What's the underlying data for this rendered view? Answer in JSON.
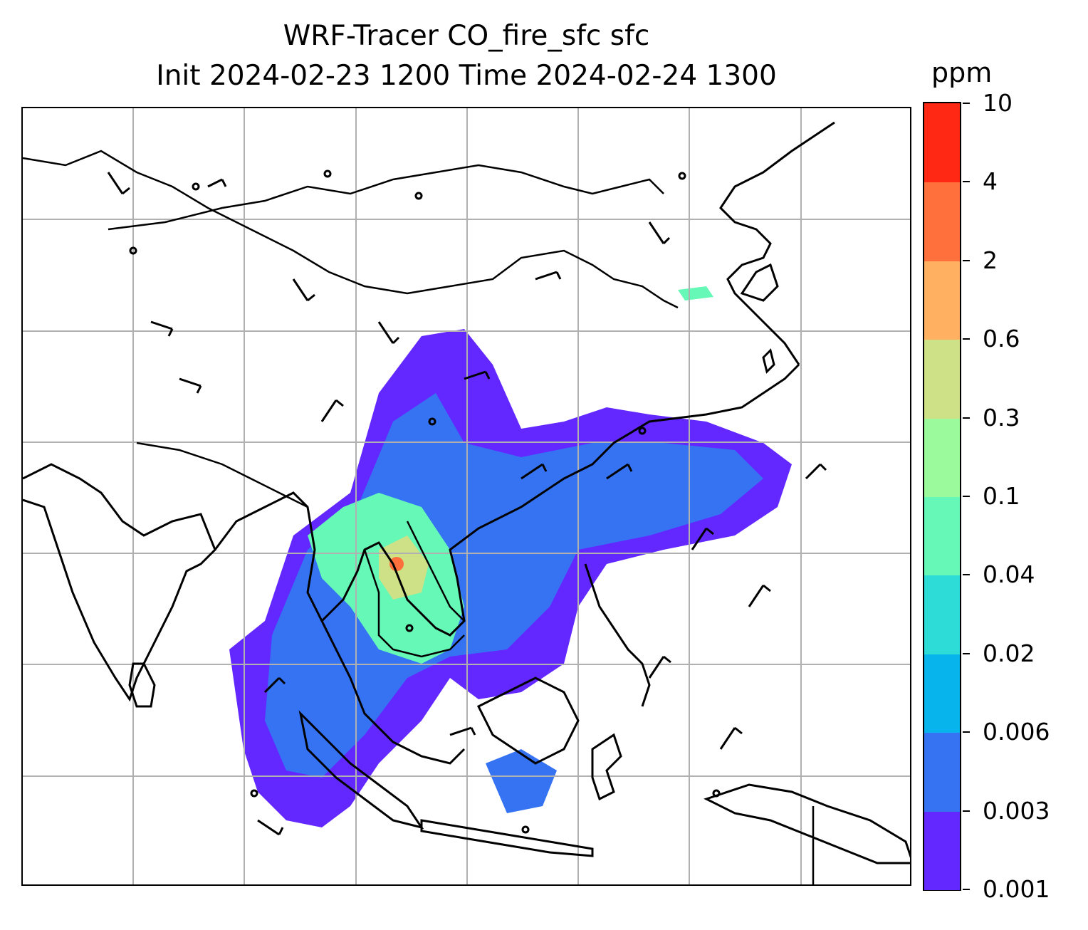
{
  "map": {
    "title_line1": "WRF-Tracer CO_fire_sfc sfc",
    "title_line2": "Init 2024-02-23 1200 Time 2024-02-24 1300",
    "variable": "CO_fire_sfc",
    "level": "sfc",
    "init_time": "2024-02-23 1200",
    "valid_time": "2024-02-24 1300",
    "overlays": [
      "coastlines",
      "country-borders",
      "gridlines",
      "wind-barbs",
      "calm-wind-circles"
    ],
    "colors": {
      "coastline": "#000000",
      "gridline": "#b0b0b0",
      "barb": "#000000"
    }
  },
  "colorbar": {
    "unit": "ppm",
    "levels": [
      "0.001",
      "0.003",
      "0.006",
      "0.02",
      "0.04",
      "0.1",
      "0.3",
      "0.6",
      "2",
      "4",
      "10"
    ],
    "colors": [
      "#6228ff",
      "#3573f3",
      "#08b4ec",
      "#2ddcd6",
      "#66f8b6",
      "#9afa9c",
      "#cfe186",
      "#ffb061",
      "#ff703c",
      "#ff2814"
    ]
  }
}
